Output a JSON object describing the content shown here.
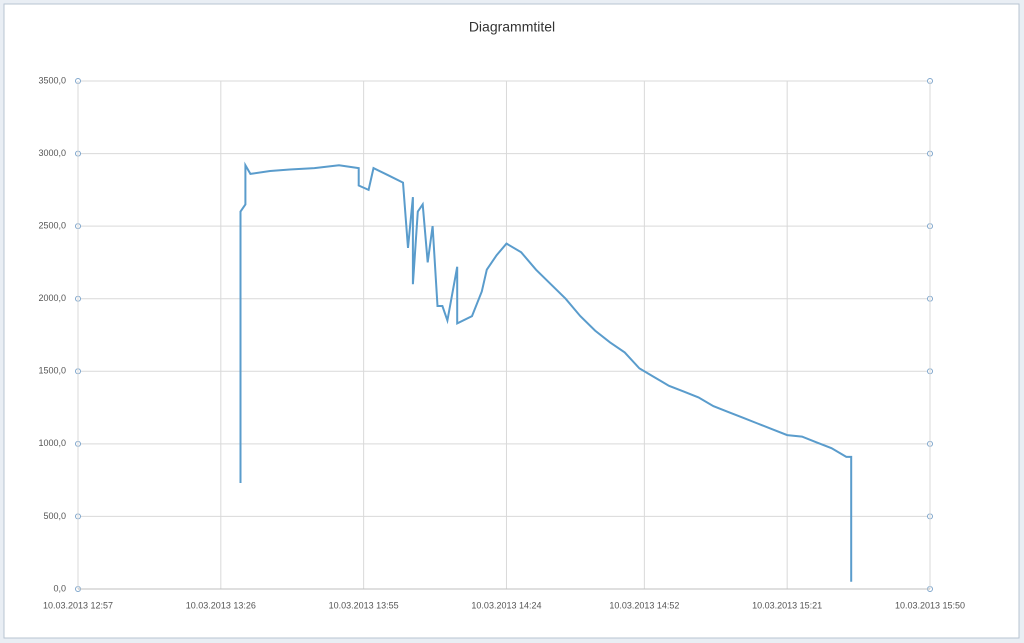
{
  "chart_data": {
    "type": "line",
    "title": "Diagrammtitel",
    "series": [
      {
        "color": "#5a9ccc",
        "x": [
          "10.03.2013 13:30",
          "10.03.2013 13:30",
          "10.03.2013 13:31",
          "10.03.2013 13:31",
          "10.03.2013 13:32",
          "10.03.2013 13:36",
          "10.03.2013 13:40",
          "10.03.2013 13:45",
          "10.03.2013 13:50",
          "10.03.2013 13:54",
          "10.03.2013 13:54",
          "10.03.2013 13:56",
          "10.03.2013 13:57",
          "10.03.2013 14:00",
          "10.03.2013 14:03",
          "10.03.2013 14:04",
          "10.03.2013 14:05",
          "10.03.2013 14:05",
          "10.03.2013 14:06",
          "10.03.2013 14:07",
          "10.03.2013 14:08",
          "10.03.2013 14:09",
          "10.03.2013 14:10",
          "10.03.2013 14:11",
          "10.03.2013 14:12",
          "10.03.2013 14:14",
          "10.03.2013 14:14",
          "10.03.2013 14:17",
          "10.03.2013 14:19",
          "10.03.2013 14:20",
          "10.03.2013 14:22",
          "10.03.2013 14:24",
          "10.03.2013 14:27",
          "10.03.2013 14:30",
          "10.03.2013 14:33",
          "10.03.2013 14:36",
          "10.03.2013 14:39",
          "10.03.2013 14:42",
          "10.03.2013 14:45",
          "10.03.2013 14:48",
          "10.03.2013 14:51",
          "10.03.2013 14:54",
          "10.03.2013 14:57",
          "10.03.2013 15:00",
          "10.03.2013 15:03",
          "10.03.2013 15:06",
          "10.03.2013 15:09",
          "10.03.2013 15:12",
          "10.03.2013 15:15",
          "10.03.2013 15:18",
          "10.03.2013 15:21",
          "10.03.2013 15:24",
          "10.03.2013 15:27",
          "10.03.2013 15:30",
          "10.03.2013 15:33",
          "10.03.2013 15:34",
          "10.03.2013 15:34"
        ],
        "values": [
          730,
          2600,
          2650,
          2920,
          2860,
          2880,
          2890,
          2900,
          2920,
          2900,
          2780,
          2750,
          2900,
          2850,
          2800,
          2350,
          2700,
          2100,
          2600,
          2650,
          2250,
          2500,
          1950,
          1950,
          1850,
          2220,
          1830,
          1880,
          2050,
          2200,
          2300,
          2380,
          2320,
          2200,
          2100,
          2000,
          1880,
          1780,
          1700,
          1630,
          1520,
          1460,
          1400,
          1360,
          1320,
          1260,
          1220,
          1180,
          1140,
          1100,
          1060,
          1050,
          1010,
          970,
          910,
          910,
          50
        ]
      }
    ],
    "xlim": [
      "10.03.2013 12:57",
      "10.03.2013 15:50"
    ],
    "xticks": [
      "10.03.2013 12:57",
      "10.03.2013 13:26",
      "10.03.2013 13:55",
      "10.03.2013 14:24",
      "10.03.2013 14:52",
      "10.03.2013 15:21",
      "10.03.2013 15:50"
    ],
    "ylim": [
      0,
      3500
    ],
    "yticks": [
      {
        "value": 0,
        "label": "0,0"
      },
      {
        "value": 500,
        "label": "500,0"
      },
      {
        "value": 1000,
        "label": "1000,0"
      },
      {
        "value": 1500,
        "label": "1500,0"
      },
      {
        "value": 2000,
        "label": "2000,0"
      },
      {
        "value": 2500,
        "label": "2500,0"
      },
      {
        "value": 3000,
        "label": "3000,0"
      },
      {
        "value": 3500,
        "label": "3500,0"
      }
    ],
    "grid": true
  }
}
